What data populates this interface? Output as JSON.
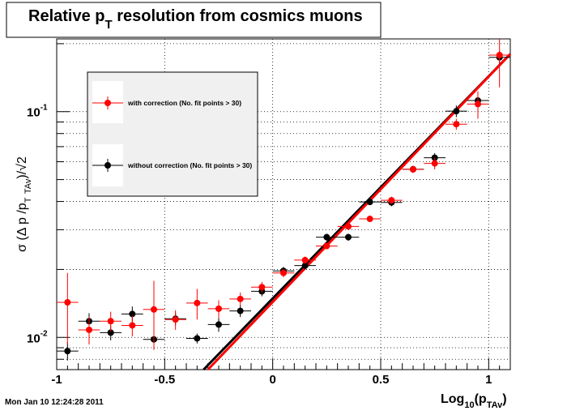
{
  "title": {
    "main": "Relative p",
    "sub": "T",
    "rest": " resolution from cosmics muons"
  },
  "footer": "Mon Jan 10 12:24:28 2011",
  "xlabel": {
    "base": "Log",
    "sub1": "10",
    "paren": "(p",
    "sub2": "TAv",
    "close": ")"
  },
  "ylabel": {
    "sigma": "σ (Δ p /p",
    "sub1": "T",
    "sub2": "TAv",
    "sqrt": ")/√2"
  },
  "chart_data": {
    "type": "scatter",
    "xlim": [
      -1,
      1.1
    ],
    "ylim": [
      0.0072,
      0.21
    ],
    "ylog": true,
    "grid": true,
    "x_ticks": [
      {
        "v": -1,
        "label": "-1"
      },
      {
        "v": -0.5,
        "label": "-0.5"
      },
      {
        "v": 0,
        "label": "0"
      },
      {
        "v": 0.5,
        "label": "0.5"
      },
      {
        "v": 1,
        "label": "1"
      }
    ],
    "y_major_ticks": [
      {
        "v": 0.01,
        "base": "10",
        "exp": "-2"
      },
      {
        "v": 0.1,
        "base": "10",
        "exp": "-1"
      }
    ],
    "legend": {
      "placement": "top-left",
      "entries": [
        {
          "label": "with correction (No. fit points > 30)",
          "color": "#ff0000"
        },
        {
          "label": "without correction (No. fit points > 30)",
          "color": "#000000"
        }
      ]
    },
    "series": [
      {
        "name": "with correction (No. fit points > 30)",
        "color": "#ff0000",
        "points": [
          {
            "x": -0.95,
            "y": 0.0143,
            "ey": 0.005
          },
          {
            "x": -0.85,
            "y": 0.0108,
            "ey": 0.0015
          },
          {
            "x": -0.75,
            "y": 0.0118,
            "ey": 0.0012
          },
          {
            "x": -0.65,
            "y": 0.0113,
            "ey": 0.0012
          },
          {
            "x": -0.55,
            "y": 0.0133,
            "ey": 0.0045
          },
          {
            "x": -0.45,
            "y": 0.012,
            "ey": 0.0012
          },
          {
            "x": -0.35,
            "y": 0.0142,
            "ey": 0.0022
          },
          {
            "x": -0.25,
            "y": 0.0134,
            "ey": 0.0012
          },
          {
            "x": -0.15,
            "y": 0.0148,
            "ey": 0.001
          },
          {
            "x": -0.05,
            "y": 0.0167,
            "ey": 0.0009
          },
          {
            "x": 0.05,
            "y": 0.0193,
            "ey": 0.0008
          },
          {
            "x": 0.15,
            "y": 0.022,
            "ey": 0.0008
          },
          {
            "x": 0.25,
            "y": 0.0254,
            "ey": 0.0008
          },
          {
            "x": 0.35,
            "y": 0.031,
            "ey": 0.001
          },
          {
            "x": 0.45,
            "y": 0.0335,
            "ey": 0.001
          },
          {
            "x": 0.55,
            "y": 0.0405,
            "ey": 0.0015
          },
          {
            "x": 0.65,
            "y": 0.0555,
            "ey": 0.002
          },
          {
            "x": 0.75,
            "y": 0.059,
            "ey": 0.0035
          },
          {
            "x": 0.85,
            "y": 0.088,
            "ey": 0.005
          },
          {
            "x": 0.95,
            "y": 0.108,
            "ey": 0.015
          },
          {
            "x": 1.05,
            "y": 0.178,
            "ey": 0.05
          }
        ]
      },
      {
        "name": "without correction (No. fit points > 30)",
        "color": "#000000",
        "points": [
          {
            "x": -0.95,
            "y": 0.0087,
            "ey": 0.0008
          },
          {
            "x": -0.85,
            "y": 0.0118,
            "ey": 0.001
          },
          {
            "x": -0.75,
            "y": 0.0105,
            "ey": 0.0008
          },
          {
            "x": -0.65,
            "y": 0.0127,
            "ey": 0.001
          },
          {
            "x": -0.55,
            "y": 0.0098,
            "ey": 0.0005
          },
          {
            "x": -0.45,
            "y": 0.0121,
            "ey": 0.0008
          },
          {
            "x": -0.35,
            "y": 0.0099,
            "ey": 0.0005
          },
          {
            "x": -0.25,
            "y": 0.0114,
            "ey": 0.0008
          },
          {
            "x": -0.15,
            "y": 0.0131,
            "ey": 0.0008
          },
          {
            "x": -0.05,
            "y": 0.016,
            "ey": 0.0008
          },
          {
            "x": 0.05,
            "y": 0.0197,
            "ey": 0.0008
          },
          {
            "x": 0.15,
            "y": 0.0208,
            "ey": 0.0008
          },
          {
            "x": 0.25,
            "y": 0.0278,
            "ey": 0.001
          },
          {
            "x": 0.35,
            "y": 0.0278,
            "ey": 0.001
          },
          {
            "x": 0.45,
            "y": 0.0398,
            "ey": 0.0012
          },
          {
            "x": 0.55,
            "y": 0.0396,
            "ey": 0.0015
          },
          {
            "x": 0.65,
            "y": 0.0556,
            "ey": 0.002
          },
          {
            "x": 0.75,
            "y": 0.0625,
            "ey": 0.003
          },
          {
            "x": 0.85,
            "y": 0.1005,
            "ey": 0.006
          },
          {
            "x": 0.95,
            "y": 0.112,
            "ey": 0.008
          },
          {
            "x": 1.05,
            "y": 0.174,
            "ey": 0.012
          }
        ]
      }
    ],
    "fit_lines": [
      {
        "color": "#000000",
        "x": [
          -0.32,
          1.1
        ],
        "y": [
          0.0072,
          0.18
        ]
      },
      {
        "color": "#ff0000",
        "x": [
          -0.3,
          1.1
        ],
        "y": [
          0.0072,
          0.18
        ]
      }
    ]
  }
}
